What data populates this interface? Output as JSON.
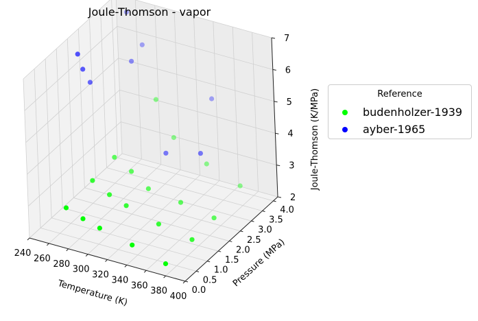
{
  "chart_data": {
    "type": "scatter",
    "projection": "3d",
    "title": "Joule-Thomson - vapor",
    "xlabel": "Temperature (K)",
    "ylabel": "Pressure (MPa)",
    "zlabel": "Joule-Thomson (K/MPa)",
    "xlim": [
      240,
      400
    ],
    "ylim": [
      0,
      4.2
    ],
    "zlim": [
      2,
      7
    ],
    "xticks": [
      "240",
      "260",
      "280",
      "300",
      "320",
      "340",
      "360",
      "380",
      "400"
    ],
    "yticks": [
      "0.0",
      "0.5",
      "1.0",
      "1.5",
      "2.0",
      "2.5",
      "3.0",
      "3.5",
      "4.0"
    ],
    "zticks": [
      "2",
      "3",
      "4",
      "5",
      "6",
      "7"
    ],
    "grid": true,
    "legend_title": "Reference",
    "legend_position": "outside-right",
    "series": [
      {
        "name": "budenholzer-1939",
        "color": "#00ff00",
        "points": [
          {
            "x": 277,
            "y": 0.1,
            "z": 3.2
          },
          {
            "x": 277,
            "y": 1.3,
            "z": 3.3
          },
          {
            "x": 277,
            "y": 2.3,
            "z": 3.4
          },
          {
            "x": 294,
            "y": 0.1,
            "z": 3.0
          },
          {
            "x": 294,
            "y": 1.3,
            "z": 3.0
          },
          {
            "x": 294,
            "y": 2.3,
            "z": 3.1
          },
          {
            "x": 294,
            "y": 3.5,
            "z": 4.6
          },
          {
            "x": 311,
            "y": 0.1,
            "z": 2.85
          },
          {
            "x": 311,
            "y": 1.3,
            "z": 2.8
          },
          {
            "x": 311,
            "y": 2.3,
            "z": 2.7
          },
          {
            "x": 311,
            "y": 3.5,
            "z": 3.55
          },
          {
            "x": 344,
            "y": 0.1,
            "z": 2.6
          },
          {
            "x": 344,
            "y": 1.3,
            "z": 2.5
          },
          {
            "x": 344,
            "y": 2.3,
            "z": 2.55
          },
          {
            "x": 344,
            "y": 3.5,
            "z": 3.0
          },
          {
            "x": 378,
            "y": 0.1,
            "z": 2.3
          },
          {
            "x": 378,
            "y": 1.3,
            "z": 2.3
          },
          {
            "x": 378,
            "y": 2.3,
            "z": 2.35
          },
          {
            "x": 378,
            "y": 3.5,
            "z": 2.6
          }
        ]
      },
      {
        "name": "ayber-1965",
        "color": "#0000ff",
        "points": [
          {
            "x": 250,
            "y": 2.0,
            "z": 6.6
          },
          {
            "x": 250,
            "y": 2.2,
            "z": 6.0
          },
          {
            "x": 250,
            "y": 2.5,
            "z": 5.4
          },
          {
            "x": 255,
            "y": 4.0,
            "z": 6.7
          },
          {
            "x": 270,
            "y": 4.0,
            "z": 5.8
          },
          {
            "x": 270,
            "y": 3.5,
            "z": 5.6
          },
          {
            "x": 314,
            "y": 3.0,
            "z": 3.4
          },
          {
            "x": 350,
            "y": 3.0,
            "z": 3.7
          },
          {
            "x": 340,
            "y": 4.0,
            "z": 4.7
          }
        ]
      }
    ]
  }
}
